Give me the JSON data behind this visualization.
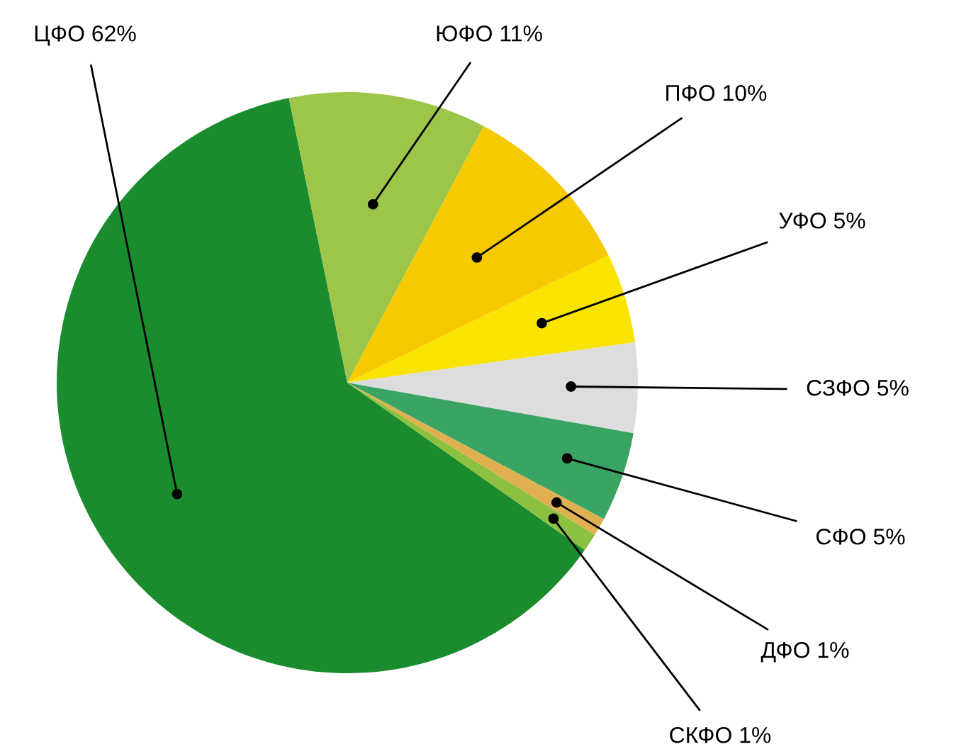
{
  "chart_data": {
    "type": "pie",
    "categories": [
      "ЦФО 62%",
      "ЮФО 11%",
      "ПФО 10%",
      "УФО 5%",
      "СЗФО 5%",
      "СФО 5%",
      "ДФО 1%",
      "СКФО 1%"
    ],
    "values": [
      62,
      11,
      10,
      5,
      5,
      5,
      1,
      1
    ],
    "colors": [
      "#1a8c2e",
      "#9cc54a",
      "#f7c900",
      "#f9e400",
      "#dddddd",
      "#3aa463",
      "#e0b050",
      "#8cc040"
    ]
  }
}
